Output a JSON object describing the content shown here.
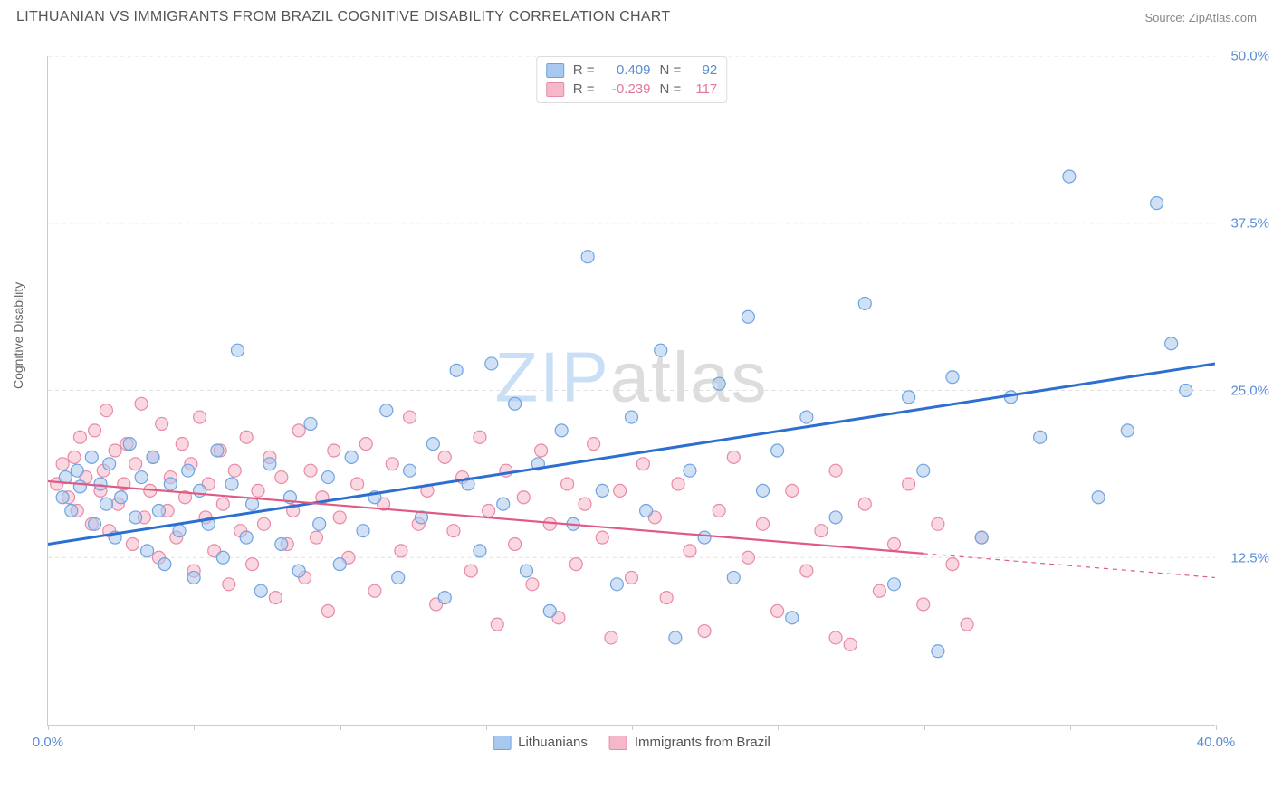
{
  "header": {
    "title": "LITHUANIAN VS IMMIGRANTS FROM BRAZIL COGNITIVE DISABILITY CORRELATION CHART",
    "source_prefix": "Source: ",
    "source_name": "ZipAtlas.com"
  },
  "chart": {
    "type": "scatter",
    "y_axis_label": "Cognitive Disability",
    "xlim": [
      0,
      40
    ],
    "ylim": [
      0,
      50
    ],
    "x_ticks": [
      0,
      5,
      10,
      15,
      20,
      25,
      30,
      35,
      40
    ],
    "x_tick_labels_shown": {
      "0": "0.0%",
      "40": "40.0%"
    },
    "y_ticks": [
      12.5,
      25.0,
      37.5,
      50.0
    ],
    "y_tick_labels": [
      "12.5%",
      "25.0%",
      "37.5%",
      "50.0%"
    ],
    "background_color": "#ffffff",
    "grid_color": "#e0e0e0",
    "grid_dash": "4,4",
    "axis_color": "#cccccc",
    "marker_radius": 7,
    "marker_opacity": 0.55,
    "marker_stroke_width": 1.2,
    "series": [
      {
        "id": "lithuanians",
        "name": "Lithuanians",
        "R": 0.409,
        "N": 92,
        "fill_color": "#a9c8ef",
        "stroke_color": "#6fa3e0",
        "line_color": "#2d6fd0",
        "line_width": 3,
        "trend": {
          "x1": 0,
          "y1": 13.5,
          "x2": 40,
          "y2": 27.0,
          "solid_until_x": 40
        },
        "points": [
          [
            0.5,
            17.0
          ],
          [
            0.6,
            18.5
          ],
          [
            0.8,
            16.0
          ],
          [
            1.0,
            19.0
          ],
          [
            1.1,
            17.8
          ],
          [
            1.5,
            20.0
          ],
          [
            1.6,
            15.0
          ],
          [
            1.8,
            18.0
          ],
          [
            2.0,
            16.5
          ],
          [
            2.1,
            19.5
          ],
          [
            2.3,
            14.0
          ],
          [
            2.5,
            17.0
          ],
          [
            2.8,
            21.0
          ],
          [
            3.0,
            15.5
          ],
          [
            3.2,
            18.5
          ],
          [
            3.4,
            13.0
          ],
          [
            3.6,
            20.0
          ],
          [
            3.8,
            16.0
          ],
          [
            4.0,
            12.0
          ],
          [
            4.2,
            18.0
          ],
          [
            4.5,
            14.5
          ],
          [
            4.8,
            19.0
          ],
          [
            5.0,
            11.0
          ],
          [
            5.2,
            17.5
          ],
          [
            5.5,
            15.0
          ],
          [
            5.8,
            20.5
          ],
          [
            6.0,
            12.5
          ],
          [
            6.3,
            18.0
          ],
          [
            6.5,
            28.0
          ],
          [
            6.8,
            14.0
          ],
          [
            7.0,
            16.5
          ],
          [
            7.3,
            10.0
          ],
          [
            7.6,
            19.5
          ],
          [
            8.0,
            13.5
          ],
          [
            8.3,
            17.0
          ],
          [
            8.6,
            11.5
          ],
          [
            9.0,
            22.5
          ],
          [
            9.3,
            15.0
          ],
          [
            9.6,
            18.5
          ],
          [
            10.0,
            12.0
          ],
          [
            10.4,
            20.0
          ],
          [
            10.8,
            14.5
          ],
          [
            11.2,
            17.0
          ],
          [
            11.6,
            23.5
          ],
          [
            12.0,
            11.0
          ],
          [
            12.4,
            19.0
          ],
          [
            12.8,
            15.5
          ],
          [
            13.2,
            21.0
          ],
          [
            13.6,
            9.5
          ],
          [
            14.0,
            26.5
          ],
          [
            14.4,
            18.0
          ],
          [
            14.8,
            13.0
          ],
          [
            15.2,
            27.0
          ],
          [
            15.6,
            16.5
          ],
          [
            16.0,
            24.0
          ],
          [
            16.4,
            11.5
          ],
          [
            16.8,
            19.5
          ],
          [
            17.2,
            8.5
          ],
          [
            17.6,
            22.0
          ],
          [
            18.0,
            15.0
          ],
          [
            18.5,
            35.0
          ],
          [
            19.0,
            17.5
          ],
          [
            19.5,
            10.5
          ],
          [
            20.0,
            23.0
          ],
          [
            20.5,
            16.0
          ],
          [
            21.0,
            28.0
          ],
          [
            21.5,
            6.5
          ],
          [
            22.0,
            19.0
          ],
          [
            22.5,
            14.0
          ],
          [
            23.0,
            25.5
          ],
          [
            23.5,
            11.0
          ],
          [
            24.0,
            30.5
          ],
          [
            24.5,
            17.5
          ],
          [
            25.0,
            20.5
          ],
          [
            25.5,
            8.0
          ],
          [
            26.0,
            23.0
          ],
          [
            27.0,
            15.5
          ],
          [
            28.0,
            31.5
          ],
          [
            29.0,
            10.5
          ],
          [
            29.5,
            24.5
          ],
          [
            30.0,
            19.0
          ],
          [
            30.5,
            5.5
          ],
          [
            31.0,
            26.0
          ],
          [
            32.0,
            14.0
          ],
          [
            33.0,
            24.5
          ],
          [
            34.0,
            21.5
          ],
          [
            35.0,
            41.0
          ],
          [
            36.0,
            17.0
          ],
          [
            37.0,
            22.0
          ],
          [
            38.0,
            39.0
          ],
          [
            38.5,
            28.5
          ],
          [
            39.0,
            25.0
          ]
        ]
      },
      {
        "id": "brazil",
        "name": "Immigrants from Brazil",
        "R": -0.239,
        "N": 117,
        "fill_color": "#f5b8c8",
        "stroke_color": "#e88aa5",
        "line_color": "#e05a85",
        "line_width": 2.2,
        "trend": {
          "x1": 0,
          "y1": 18.2,
          "x2": 40,
          "y2": 11.0,
          "solid_until_x": 30
        },
        "points": [
          [
            0.3,
            18.0
          ],
          [
            0.5,
            19.5
          ],
          [
            0.7,
            17.0
          ],
          [
            0.9,
            20.0
          ],
          [
            1.0,
            16.0
          ],
          [
            1.1,
            21.5
          ],
          [
            1.3,
            18.5
          ],
          [
            1.5,
            15.0
          ],
          [
            1.6,
            22.0
          ],
          [
            1.8,
            17.5
          ],
          [
            1.9,
            19.0
          ],
          [
            2.0,
            23.5
          ],
          [
            2.1,
            14.5
          ],
          [
            2.3,
            20.5
          ],
          [
            2.4,
            16.5
          ],
          [
            2.6,
            18.0
          ],
          [
            2.7,
            21.0
          ],
          [
            2.9,
            13.5
          ],
          [
            3.0,
            19.5
          ],
          [
            3.2,
            24.0
          ],
          [
            3.3,
            15.5
          ],
          [
            3.5,
            17.5
          ],
          [
            3.6,
            20.0
          ],
          [
            3.8,
            12.5
          ],
          [
            3.9,
            22.5
          ],
          [
            4.1,
            16.0
          ],
          [
            4.2,
            18.5
          ],
          [
            4.4,
            14.0
          ],
          [
            4.6,
            21.0
          ],
          [
            4.7,
            17.0
          ],
          [
            4.9,
            19.5
          ],
          [
            5.0,
            11.5
          ],
          [
            5.2,
            23.0
          ],
          [
            5.4,
            15.5
          ],
          [
            5.5,
            18.0
          ],
          [
            5.7,
            13.0
          ],
          [
            5.9,
            20.5
          ],
          [
            6.0,
            16.5
          ],
          [
            6.2,
            10.5
          ],
          [
            6.4,
            19.0
          ],
          [
            6.6,
            14.5
          ],
          [
            6.8,
            21.5
          ],
          [
            7.0,
            12.0
          ],
          [
            7.2,
            17.5
          ],
          [
            7.4,
            15.0
          ],
          [
            7.6,
            20.0
          ],
          [
            7.8,
            9.5
          ],
          [
            8.0,
            18.5
          ],
          [
            8.2,
            13.5
          ],
          [
            8.4,
            16.0
          ],
          [
            8.6,
            22.0
          ],
          [
            8.8,
            11.0
          ],
          [
            9.0,
            19.0
          ],
          [
            9.2,
            14.0
          ],
          [
            9.4,
            17.0
          ],
          [
            9.6,
            8.5
          ],
          [
            9.8,
            20.5
          ],
          [
            10.0,
            15.5
          ],
          [
            10.3,
            12.5
          ],
          [
            10.6,
            18.0
          ],
          [
            10.9,
            21.0
          ],
          [
            11.2,
            10.0
          ],
          [
            11.5,
            16.5
          ],
          [
            11.8,
            19.5
          ],
          [
            12.1,
            13.0
          ],
          [
            12.4,
            23.0
          ],
          [
            12.7,
            15.0
          ],
          [
            13.0,
            17.5
          ],
          [
            13.3,
            9.0
          ],
          [
            13.6,
            20.0
          ],
          [
            13.9,
            14.5
          ],
          [
            14.2,
            18.5
          ],
          [
            14.5,
            11.5
          ],
          [
            14.8,
            21.5
          ],
          [
            15.1,
            16.0
          ],
          [
            15.4,
            7.5
          ],
          [
            15.7,
            19.0
          ],
          [
            16.0,
            13.5
          ],
          [
            16.3,
            17.0
          ],
          [
            16.6,
            10.5
          ],
          [
            16.9,
            20.5
          ],
          [
            17.2,
            15.0
          ],
          [
            17.5,
            8.0
          ],
          [
            17.8,
            18.0
          ],
          [
            18.1,
            12.0
          ],
          [
            18.4,
            16.5
          ],
          [
            18.7,
            21.0
          ],
          [
            19.0,
            14.0
          ],
          [
            19.3,
            6.5
          ],
          [
            19.6,
            17.5
          ],
          [
            20.0,
            11.0
          ],
          [
            20.4,
            19.5
          ],
          [
            20.8,
            15.5
          ],
          [
            21.2,
            9.5
          ],
          [
            21.6,
            18.0
          ],
          [
            22.0,
            13.0
          ],
          [
            22.5,
            7.0
          ],
          [
            23.0,
            16.0
          ],
          [
            23.5,
            20.0
          ],
          [
            24.0,
            12.5
          ],
          [
            24.5,
            15.0
          ],
          [
            25.0,
            8.5
          ],
          [
            25.5,
            17.5
          ],
          [
            26.0,
            11.5
          ],
          [
            26.5,
            14.5
          ],
          [
            27.0,
            19.0
          ],
          [
            27.5,
            6.0
          ],
          [
            28.0,
            16.5
          ],
          [
            28.5,
            10.0
          ],
          [
            29.0,
            13.5
          ],
          [
            29.5,
            18.0
          ],
          [
            30.0,
            9.0
          ],
          [
            30.5,
            15.0
          ],
          [
            31.0,
            12.0
          ],
          [
            31.5,
            7.5
          ],
          [
            32.0,
            14.0
          ],
          [
            27.0,
            6.5
          ]
        ]
      }
    ]
  },
  "legend_top": {
    "label_R": "R =",
    "label_N": "N ="
  },
  "watermark": {
    "text_zip": "ZIP",
    "text_atlas": "atlas",
    "color_zip": "#c9dff5",
    "color_atlas": "#dddddd",
    "fontsize": 78
  },
  "colors": {
    "title_text": "#555555",
    "source_text": "#888888",
    "axis_label_text": "#666666",
    "tick_blue": "#5a8dd6",
    "tick_pink": "#e07a9a",
    "legend_text": "#555555"
  }
}
